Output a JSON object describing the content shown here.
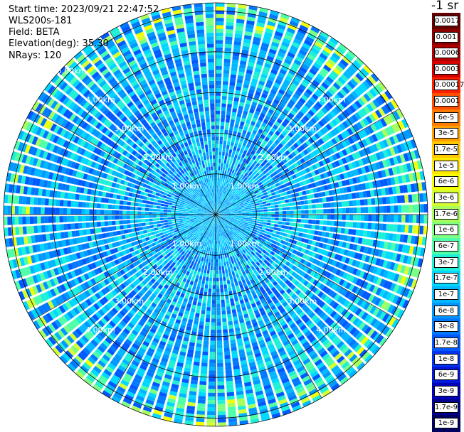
{
  "header": {
    "start_time": "Start time: 2023/09/21 22:47:52",
    "instrument": "WLS200s-181",
    "field": "Field: BETA",
    "elevation": "Elevation(deg): 35.30",
    "nrays": "NRays: 120"
  },
  "chart_data": {
    "type": "heatmap",
    "projection": "polar (PPI scan)",
    "field": "BETA",
    "n_rays": 120,
    "elevation_deg": 35.3,
    "range_km": [
      0,
      5.2
    ],
    "range_rings_km": [
      1,
      2,
      3,
      4,
      5
    ],
    "range_ring_labels": [
      "1.00km",
      "2.00km",
      "3.00km",
      "4.00km",
      "5.00km"
    ],
    "ring_label_bearings_deg": [
      315,
      45,
      135,
      225
    ],
    "radial_lines_deg": [
      0,
      30,
      60,
      90,
      120,
      150,
      180,
      210,
      240,
      270,
      300,
      330
    ],
    "range_gates": 57,
    "dominant_value": "1e-8 to 3e-7",
    "colorbar": {
      "unit_label": "-1 sr",
      "scale": "log",
      "labels": [
        "0.0017",
        "0.001",
        "0.0006",
        "0.0003",
        "0.00017",
        "0.0001",
        "6e-5",
        "3e-5",
        "1.7e-5",
        "1e-5",
        "6e-6",
        "3e-6",
        "1.7e-6",
        "1e-6",
        "6e-7",
        "3e-7",
        "1.7e-7",
        "1e-7",
        "6e-8",
        "3e-8",
        "1.7e-8",
        "1e-8",
        "6e-9",
        "3e-9",
        "1.7e-9",
        "1e-9"
      ],
      "colors": [
        "#660000",
        "#8a0000",
        "#b00000",
        "#d60000",
        "#ff2000",
        "#ff5000",
        "#ff7c00",
        "#ffa000",
        "#ffc800",
        "#ffe800",
        "#f4ff00",
        "#d6ff30",
        "#a8ff5a",
        "#7cff82",
        "#4effa8",
        "#1ef0d8",
        "#00d8ff",
        "#00b8ff",
        "#0098ff",
        "#0078ff",
        "#0058ff",
        "#0034ee",
        "#0018d8",
        "#0000b8",
        "#00008c",
        "#000060"
      ]
    }
  }
}
